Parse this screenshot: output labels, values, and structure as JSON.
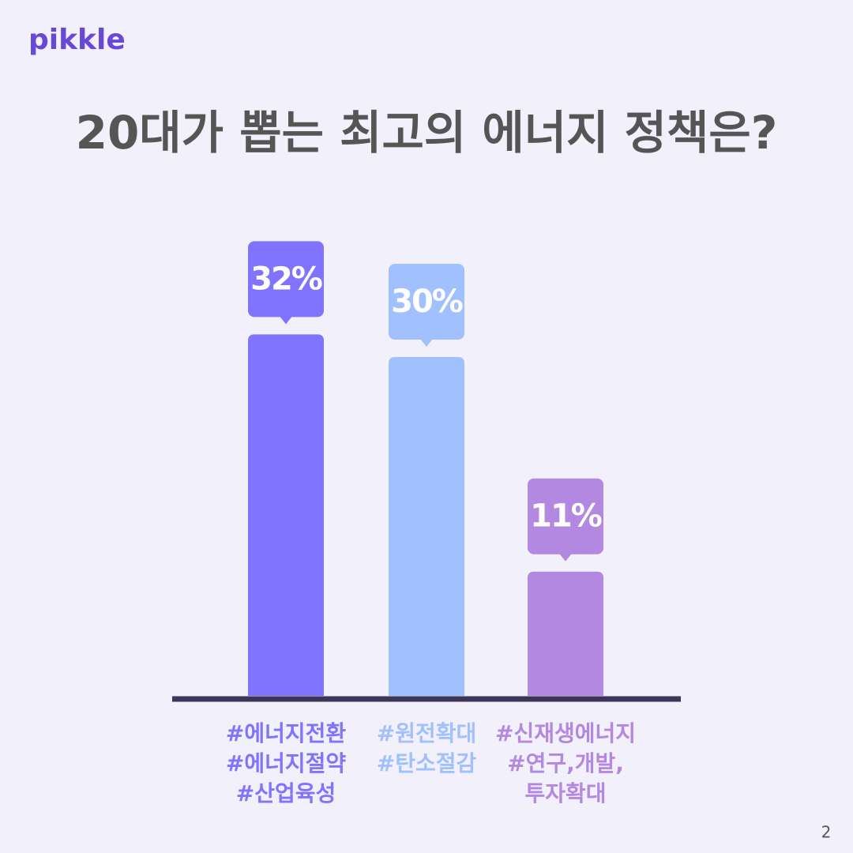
{
  "logo": "pikkle",
  "page_number": "2",
  "chart_data": {
    "type": "bar",
    "title": "20대가 뽑는 최고의 에너지 정책은?",
    "categories": [
      [
        "#에너지전환",
        "#에너지절약",
        "#산업육성"
      ],
      [
        "#원전확대",
        "#탄소절감"
      ],
      [
        "#신재생에너지",
        "#연구,개발,",
        "투자확대"
      ]
    ],
    "values": [
      32,
      30,
      11
    ],
    "value_labels": [
      "32%",
      "30%",
      "11%"
    ],
    "colors": [
      "#8074fe",
      "#a0c0fe",
      "#b388e0"
    ]
  }
}
